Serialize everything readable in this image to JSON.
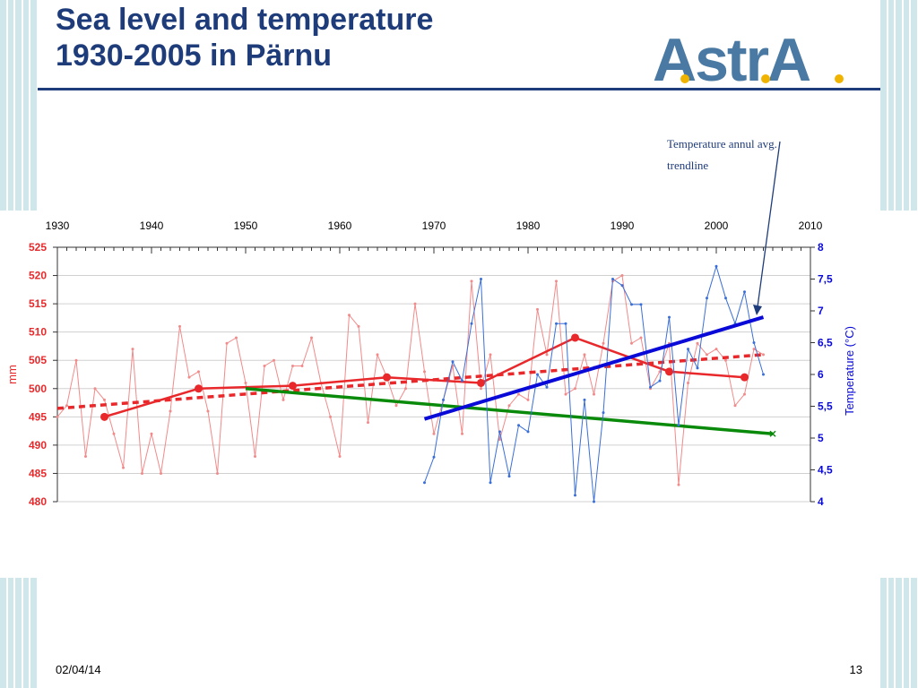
{
  "slide": {
    "title_line1": "Sea level and temperature",
    "title_line2": "1930-2005 in Pärnu",
    "logo_text": "AstrA",
    "date": "02/04/14",
    "page_number": "13"
  },
  "colors": {
    "title": "#1f3c7a",
    "sea_level": "#e8282a",
    "sea_level_raw": "#f28a8a",
    "temperature_raw": "#3a6fd8",
    "temperature_trend": "#0a0ad8",
    "green_trend": "#0a8a0a",
    "logo_blue": "#4a7aa3"
  },
  "annotation": {
    "line1": "Temperature annul avg.",
    "line2": "trendline"
  },
  "chart_data": {
    "type": "line",
    "x_ticks": [
      "1930",
      "1940",
      "1950",
      "1960",
      "1970",
      "1980",
      "1990",
      "2000",
      "2010"
    ],
    "xlim": [
      1930,
      2010
    ],
    "ylabel_left": "mm",
    "ylim_left": [
      480,
      525
    ],
    "yticks_left": [
      "480",
      "485",
      "490",
      "495",
      "500",
      "505",
      "510",
      "515",
      "520",
      "525"
    ],
    "ylabel_right": "Temperature (°C)",
    "ylim_right": [
      4,
      8
    ],
    "yticks_right": [
      "4",
      "4,5",
      "5",
      "5,5",
      "6",
      "6,5",
      "7",
      "7,5",
      "8"
    ],
    "grid": true,
    "series": [
      {
        "axis": "left",
        "style": "thin-markers",
        "x": [
          1930,
          1931,
          1932,
          1933,
          1934,
          1935,
          1936,
          1937,
          1938,
          1939,
          1940,
          1941,
          1942,
          1943,
          1944,
          1945,
          1946,
          1947,
          1948,
          1949,
          1950,
          1951,
          1952,
          1953,
          1954,
          1955,
          1956,
          1957,
          1958,
          1959,
          1960,
          1961,
          1962,
          1963,
          1964,
          1965,
          1966,
          1967,
          1968,
          1969,
          1970,
          1971,
          1972,
          1973,
          1974,
          1975,
          1976,
          1977,
          1978,
          1979,
          1980,
          1981,
          1982,
          1983,
          1984,
          1985,
          1986,
          1987,
          1988,
          1989,
          1990,
          1991,
          1992,
          1993,
          1994,
          1995,
          1996,
          1997,
          1998,
          1999,
          2000,
          2001,
          2002,
          2003,
          2004,
          2005
        ],
        "values": [
          495,
          497,
          505,
          488,
          500,
          498,
          492,
          486,
          507,
          485,
          492,
          485,
          496,
          511,
          502,
          503,
          496,
          485,
          508,
          509,
          501,
          488,
          504,
          505,
          498,
          504,
          504,
          509,
          501,
          495,
          488,
          513,
          511,
          494,
          506,
          502,
          497,
          500,
          515,
          503,
          492,
          498,
          504,
          492,
          519,
          500,
          506,
          491,
          497,
          499,
          498,
          514,
          506,
          519,
          499,
          500,
          506,
          499,
          508,
          519,
          520,
          508,
          509,
          500,
          503,
          508,
          483,
          501,
          508,
          506,
          507,
          505,
          497,
          499,
          507,
          506
        ]
      },
      {
        "axis": "left",
        "style": "thick-markers",
        "x": [
          1935,
          1945,
          1955,
          1965,
          1975,
          1985,
          1995,
          2003
        ],
        "values": [
          495,
          500,
          500.5,
          502,
          501,
          509,
          503,
          502
        ]
      },
      {
        "axis": "left",
        "style": "dashed",
        "x": [
          1930,
          2005
        ],
        "values": [
          496.5,
          506
        ]
      },
      {
        "axis": "left",
        "style": "green",
        "x": [
          1950,
          2006
        ],
        "values": [
          500,
          492
        ]
      },
      {
        "axis": "right",
        "style": "thin-markers",
        "x": [
          1969,
          1970,
          1971,
          1972,
          1973,
          1974,
          1975,
          1976,
          1977,
          1978,
          1979,
          1980,
          1981,
          1982,
          1983,
          1984,
          1985,
          1986,
          1987,
          1988,
          1989,
          1990,
          1991,
          1992,
          1993,
          1994,
          1995,
          1996,
          1997,
          1998,
          1999,
          2000,
          2001,
          2002,
          2003,
          2004,
          2005
        ],
        "values": [
          4.3,
          4.7,
          5.6,
          6.2,
          5.9,
          6.8,
          7.5,
          4.3,
          5.1,
          4.4,
          5.2,
          5.1,
          6.0,
          5.8,
          6.8,
          6.8,
          4.1,
          5.6,
          4.0,
          5.4,
          7.5,
          7.4,
          7.1,
          7.1,
          5.8,
          5.9,
          6.9,
          5.2,
          6.4,
          6.1,
          7.2,
          7.7,
          7.2,
          6.8,
          7.3,
          6.5,
          6.0
        ]
      },
      {
        "axis": "right",
        "style": "thick",
        "x": [
          1969,
          2005
        ],
        "values": [
          5.3,
          6.9
        ]
      }
    ]
  }
}
